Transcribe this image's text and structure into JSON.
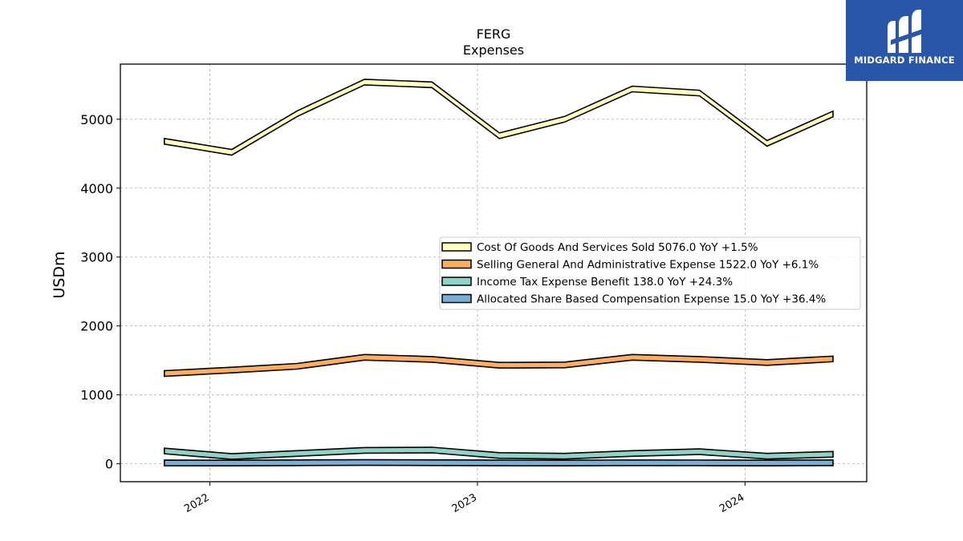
{
  "chart_data": {
    "type": "area",
    "title": "FERG",
    "subtitle": "Expenses",
    "xlabel": "",
    "ylabel": "USDm",
    "x": [
      "2021-10-31",
      "2022-01-31",
      "2022-04-30",
      "2022-07-31",
      "2022-10-31",
      "2023-01-31",
      "2023-04-30",
      "2023-07-31",
      "2023-10-31",
      "2024-01-31",
      "2024-04-30"
    ],
    "xticks": [
      "2022",
      "2023",
      "2024"
    ],
    "xlim": [
      "2021-09-01",
      "2024-06-15"
    ],
    "ylim": [
      -260,
      5800
    ],
    "yticks": [
      0,
      1000,
      2000,
      3000,
      4000,
      5000
    ],
    "grid": true,
    "legend_position": "center-right",
    "series": [
      {
        "name": "Cost Of Goods And Services Sold",
        "color": "#ffffbf",
        "legend": "Cost Of Goods And Services Sold  5076.0 YoY +1.5%",
        "values": [
          4680,
          4520,
          5080,
          5540,
          5500,
          4760,
          5000,
          5440,
          5380,
          4650,
          5076
        ]
      },
      {
        "name": "Selling General And Administrative Expense",
        "color": "#fdae61",
        "legend": "Selling General And Administrative Expense  1522.0 YoY +6.1%",
        "values": [
          1310,
          1360,
          1415,
          1545,
          1515,
          1430,
          1435,
          1545,
          1515,
          1470,
          1522
        ]
      },
      {
        "name": "Income Tax Expense Benefit",
        "color": "#8fd3c7",
        "legend": "Income Tax Expense Benefit  138.0 YoY +24.3%",
        "values": [
          185,
          105,
          150,
          195,
          200,
          120,
          110,
          150,
          175,
          110,
          138
        ]
      },
      {
        "name": "Allocated Share Based Compensation Expense",
        "color": "#7aaed4",
        "legend": "Allocated Share Based Compensation Expense  15.0 YoY +36.4%",
        "values": [
          12,
          11,
          14,
          18,
          16,
          12,
          11,
          15,
          13,
          11,
          15
        ]
      }
    ]
  },
  "logo": {
    "text": "MIDGARD FINANCE",
    "background": "#2a56a8"
  }
}
